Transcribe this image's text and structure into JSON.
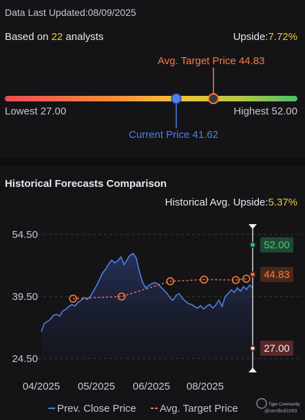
{
  "header": {
    "last_updated_label": "Data Last Updated:",
    "last_updated_value": "08/09/2025"
  },
  "summary": {
    "based_on_prefix": "Based on ",
    "analyst_count": "22",
    "based_on_suffix": " analysts",
    "upside_label": "Upside:",
    "upside_value": "7.72%"
  },
  "price_range": {
    "avg_target_label": "Avg. Target Price 44.83",
    "lowest_label": "Lowest 27.00",
    "highest_label": "Highest 52.00",
    "current_label": "Current Price 41.62",
    "lowest": 27.0,
    "highest": 52.0,
    "current": 41.62,
    "avg_target": 44.83
  },
  "historical": {
    "title": "Historical Forecasts Comparison",
    "avg_upside_label": "Historical Avg. Upside:",
    "avg_upside_value": "5.37%"
  },
  "chart_data": {
    "type": "line",
    "y_ticks": [
      "54.50",
      "39.50",
      "24.50"
    ],
    "x_ticks": [
      "04/2025",
      "05/2025",
      "06/2025",
      "08/2025"
    ],
    "ylim": [
      24.5,
      54.5
    ],
    "grid": true,
    "series": [
      {
        "name": "Prev. Close Price",
        "color": "#4f7fe6",
        "values": [
          31,
          33,
          33.5,
          34,
          35,
          35.2,
          34.8,
          36,
          36.4,
          37.1,
          37.6,
          37.2,
          38.1,
          38.6,
          39.2,
          38.8,
          39.5,
          40.8,
          42.1,
          43.6,
          45.2,
          46.1,
          47.4,
          48.3,
          47.6,
          48.2,
          49.1,
          47.2,
          48.4,
          49.5,
          49.9,
          48.8,
          45.5,
          43.1,
          41.6,
          42.1,
          42.6,
          42.9,
          42.6,
          41.8,
          41.1,
          40.3,
          39.2,
          38.6,
          39.8,
          40.2,
          39.1,
          38.4,
          37.8,
          37.6,
          37.1,
          36.7,
          37.3,
          36.5,
          37.2,
          37.6,
          36.7,
          37.5,
          38.6,
          37.1,
          39.5,
          40.2,
          41.1,
          40.5,
          41.6,
          40.8,
          41.9,
          41.2,
          42.3,
          41.62
        ]
      },
      {
        "name": "Avg. Target Price",
        "color": "#ff7a3d",
        "points": [
          [
            0.15,
            39.0
          ],
          [
            0.38,
            39.5
          ],
          [
            0.61,
            43.2
          ],
          [
            0.77,
            43.6
          ],
          [
            0.92,
            43.5
          ],
          [
            0.97,
            43.8
          ]
        ]
      }
    ],
    "end_labels": [
      {
        "name": "Highest",
        "value": 52.0,
        "text": "52.00",
        "color": "#4fc37a",
        "bg": "#1d4a33"
      },
      {
        "name": "Avg. Target",
        "value": 44.83,
        "text": "44.83",
        "color": "#ff7a3d",
        "bg": "#4a2818"
      },
      {
        "name": "Lowest",
        "value": 27.0,
        "text": "27.00",
        "color": "#e8e8ec",
        "bg": "#5a2727"
      }
    ],
    "legend": [
      {
        "name": "Prev. Close Price",
        "color": "#4f7fe6",
        "style": "solid"
      },
      {
        "name": "Avg. Target Price",
        "color": "#ff7a3d",
        "style": "dashed"
      }
    ],
    "legend_position": "bottom"
  },
  "watermark": {
    "brand": "Tiger Community",
    "user": "@nerdbull1669"
  }
}
